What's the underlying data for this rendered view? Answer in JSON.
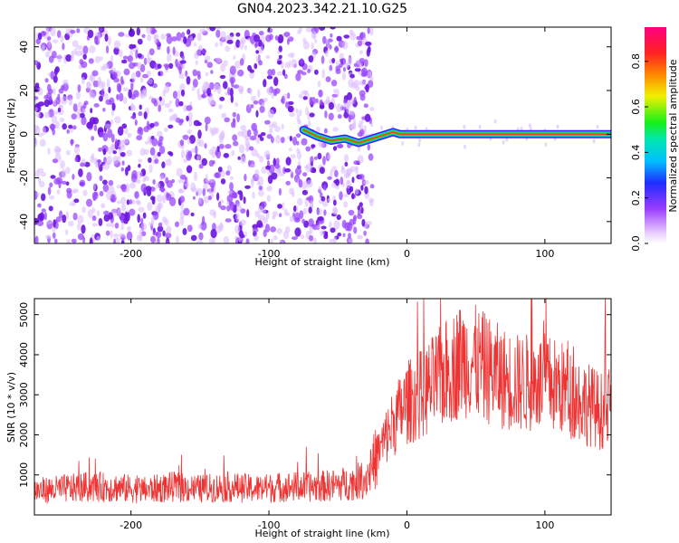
{
  "figure": {
    "title": "GN04.2023.342.21.10.G25"
  },
  "colors": {
    "snr_line": "#ee3333",
    "scatter_point": "#7a1fe8",
    "axis": "#000000"
  },
  "chart_data": [
    {
      "type": "heatmap",
      "title": "",
      "xlabel": "Height of straight line (km)",
      "ylabel": "Frequency (Hz)",
      "xlim": [
        -270,
        148
      ],
      "ylim": [
        -50,
        49
      ],
      "xticks": [
        -200,
        -100,
        0,
        100
      ],
      "yticks": [
        -40,
        -20,
        0,
        20,
        40
      ],
      "grid": false,
      "noise_region_x": [
        -270,
        -35
      ],
      "tone_track": {
        "x": [
          -75,
          -65,
          -55,
          -45,
          -40,
          -35,
          -30,
          -25,
          -20,
          -15,
          -10,
          -5,
          0,
          50,
          80,
          100,
          148
        ],
        "y": [
          2,
          -1,
          -3,
          -2,
          -3,
          -4,
          -3,
          -2,
          -1,
          0,
          1,
          0,
          0,
          0,
          0,
          0,
          0
        ]
      },
      "colorbar": {
        "label": "Normalized spectral amplitude",
        "range": [
          0.0,
          0.95
        ],
        "ticks": [
          0.0,
          0.2,
          0.4,
          0.6,
          0.8
        ],
        "colormap": "rainbow"
      }
    },
    {
      "type": "line",
      "title": "",
      "xlabel": "Height of straight line (km)",
      "ylabel": "SNR (10 * v/v)",
      "xlim": [
        -270,
        148
      ],
      "ylim": [
        0,
        5400
      ],
      "xticks": [
        -200,
        -100,
        0,
        100
      ],
      "yticks": [
        1000,
        2000,
        3000,
        4000,
        5000
      ],
      "grid": false,
      "series": [
        {
          "name": "",
          "x": [
            -270,
            -250,
            -230,
            -210,
            -190,
            -170,
            -150,
            -130,
            -110,
            -90,
            -70,
            -50,
            -40,
            -30,
            -20,
            -10,
            0,
            10,
            20,
            30,
            40,
            50,
            60,
            70,
            80,
            90,
            100,
            110,
            120,
            130,
            140,
            148
          ],
          "y": [
            600,
            650,
            700,
            680,
            620,
            700,
            650,
            700,
            650,
            700,
            700,
            750,
            800,
            900,
            1600,
            2300,
            2800,
            3000,
            3300,
            3600,
            3900,
            3800,
            3600,
            3400,
            3300,
            3300,
            3300,
            3200,
            3000,
            2800,
            2600,
            2600
          ]
        }
      ]
    }
  ]
}
